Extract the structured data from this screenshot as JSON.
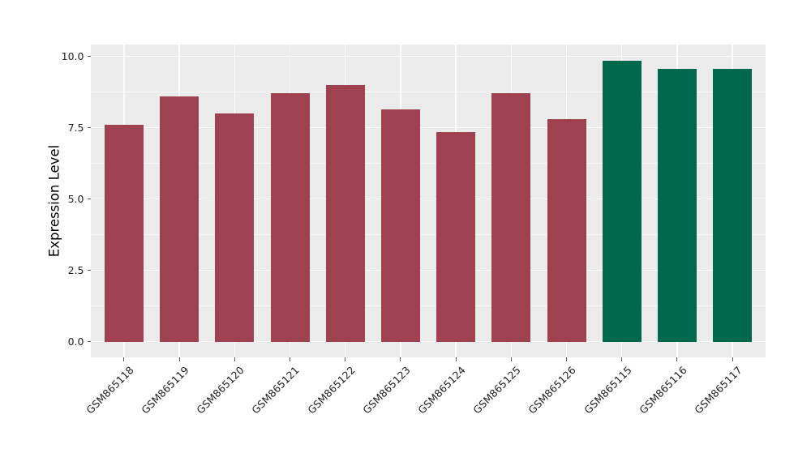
{
  "figure": {
    "background": "#ffffff",
    "panel_background": "#ebebeb",
    "grid_major_color": "#ffffff",
    "grid_minor_color": "#ffffff",
    "tick_color": "#555555",
    "text_color": "#222222"
  },
  "chart_data": {
    "type": "bar",
    "title": "",
    "xlabel": "",
    "ylabel": "Expression Level",
    "ylim": [
      0,
      10
    ],
    "grid": true,
    "legend_position": "none",
    "yticks": [
      "0.0",
      "2.5",
      "5.0",
      "7.5",
      "10.0"
    ],
    "ytick_values": [
      0,
      2.5,
      5,
      7.5,
      10
    ],
    "minor_tick_values": [
      1.25,
      3.75,
      6.25,
      8.75
    ],
    "categories": [
      "GSM865118",
      "GSM865119",
      "GSM865120",
      "GSM865121",
      "GSM865122",
      "GSM865123",
      "GSM865124",
      "GSM865125",
      "GSM865126",
      "GSM865115",
      "GSM865116",
      "GSM865117"
    ],
    "values": [
      7.6,
      8.6,
      8.0,
      8.7,
      9.0,
      8.15,
      7.35,
      8.7,
      7.8,
      9.85,
      9.55,
      9.55
    ],
    "bar_groups": [
      "groupA",
      "groupA",
      "groupA",
      "groupA",
      "groupA",
      "groupA",
      "groupA",
      "groupA",
      "groupA",
      "groupB",
      "groupB",
      "groupB"
    ],
    "group_colors": {
      "groupA": "#9e4252",
      "groupB": "#00694b"
    }
  }
}
